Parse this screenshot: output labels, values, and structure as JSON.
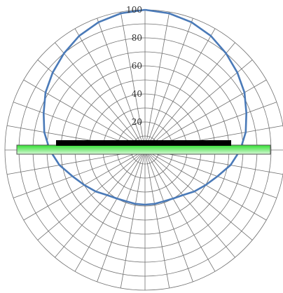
{
  "chart_data": {
    "type": "polar",
    "title": "",
    "radial_axis": {
      "ticks": [
        "20",
        "40",
        "60",
        "80",
        "100"
      ],
      "tick_values": [
        20,
        40,
        60,
        80,
        100
      ],
      "range": [
        0,
        100
      ]
    },
    "grid": true,
    "angular_grid_step_deg": 10,
    "series": [
      {
        "angles_deg": [
          -180,
          -170,
          -160,
          -150,
          -140,
          -130,
          -120,
          -110,
          -100,
          -90,
          -80,
          -70,
          -60,
          -50,
          -40,
          -30,
          -20,
          -10,
          0,
          10,
          20,
          30,
          40,
          50,
          60,
          70,
          80,
          90,
          100,
          110,
          120,
          130,
          140,
          150,
          160,
          170,
          180
        ],
        "values": [
          100,
          99,
          97,
          94,
          90,
          86,
          82,
          77,
          73,
          68,
          62,
          55,
          50,
          46,
          42,
          40,
          39,
          39,
          39,
          39,
          39,
          40,
          42,
          46,
          50,
          55,
          62,
          68,
          73,
          77,
          82,
          86,
          90,
          94,
          97,
          99,
          100
        ]
      }
    ],
    "colors": {
      "curve": "#4a7ab8",
      "grid": "#707070",
      "strip_fill_top": "#33e033",
      "strip_fill_bottom": "#d8f8d8",
      "fixture": "#000000"
    }
  }
}
